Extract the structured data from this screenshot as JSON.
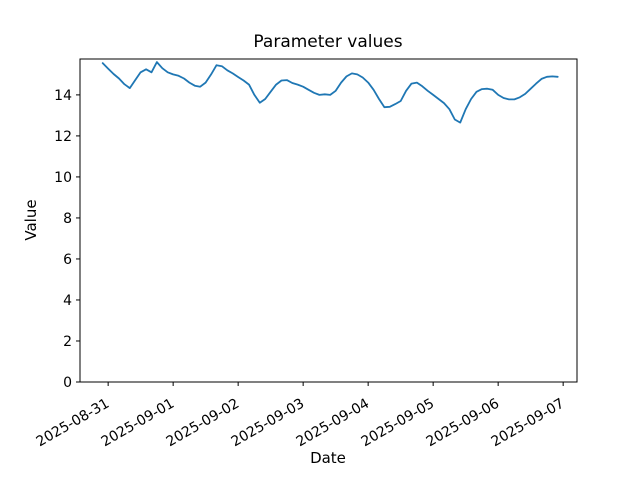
{
  "figure": {
    "kind": "matplotlib-style line chart"
  },
  "chart_data": {
    "type": "line",
    "title": "Parameter values",
    "xlabel": "Date",
    "ylabel": "Value",
    "line_color": "#1f77b4",
    "grid": false,
    "ylim": [
      0,
      15.75
    ],
    "y_ticks": [
      0,
      2,
      4,
      6,
      8,
      10,
      12,
      14
    ],
    "x_tick_labels": [
      "2025-08-31",
      "2025-09-01",
      "2025-09-02",
      "2025-09-03",
      "2025-09-04",
      "2025-09-05",
      "2025-09-06",
      "2025-09-07"
    ],
    "x_tick_days": [
      0,
      1,
      2,
      3,
      4,
      5,
      6,
      7
    ],
    "xlim_days": [
      -0.433,
      7.213
    ],
    "x_unit": "hours since 2025-08-31 00:00",
    "x_hours": [
      -2,
      0,
      2,
      4,
      6,
      8,
      10,
      12,
      14,
      16,
      18,
      20,
      22,
      24,
      26,
      28,
      30,
      32,
      34,
      36,
      38,
      40,
      42,
      44,
      46,
      48,
      50,
      52,
      54,
      56,
      58,
      60,
      62,
      64,
      66,
      68,
      70,
      72,
      74,
      76,
      78,
      80,
      82,
      84,
      86,
      88,
      90,
      92,
      94,
      96,
      98,
      100,
      102,
      104,
      106,
      108,
      110,
      112,
      114,
      116,
      118,
      120,
      122,
      124,
      126,
      128,
      130,
      132,
      134,
      136,
      138,
      140,
      142,
      144,
      146,
      148,
      150,
      152,
      154,
      156,
      158,
      160,
      162,
      164,
      166
    ],
    "values": [
      15.55,
      15.28,
      15.02,
      14.8,
      14.52,
      14.33,
      14.72,
      15.1,
      15.25,
      15.1,
      15.6,
      15.3,
      15.1,
      15.0,
      14.93,
      14.8,
      14.6,
      14.45,
      14.4,
      14.6,
      15.0,
      15.45,
      15.4,
      15.2,
      15.05,
      14.87,
      14.7,
      14.5,
      14.0,
      13.62,
      13.8,
      14.15,
      14.5,
      14.7,
      14.72,
      14.58,
      14.5,
      14.4,
      14.25,
      14.1,
      14.0,
      14.03,
      14.0,
      14.2,
      14.6,
      14.9,
      15.05,
      15.0,
      14.85,
      14.6,
      14.25,
      13.8,
      13.4,
      13.42,
      13.55,
      13.7,
      14.2,
      14.55,
      14.6,
      14.42,
      14.2,
      14.0,
      13.8,
      13.6,
      13.3,
      12.8,
      12.65,
      13.3,
      13.8,
      14.15,
      14.28,
      14.3,
      14.25,
      14.0,
      13.85,
      13.78,
      13.78,
      13.88,
      14.05,
      14.3,
      14.55,
      14.78,
      14.88,
      14.9,
      14.88
    ]
  }
}
